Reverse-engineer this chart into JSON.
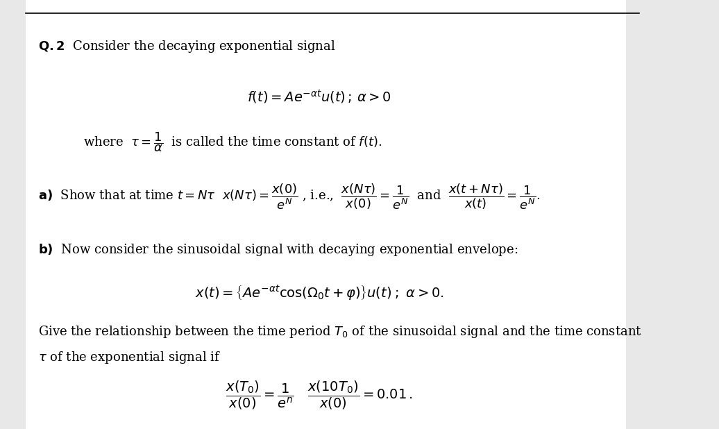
{
  "background_color": "#e8e8e8",
  "page_background": "#ffffff",
  "text_color": "#000000",
  "font_size_main": 13,
  "font_size_math": 13
}
